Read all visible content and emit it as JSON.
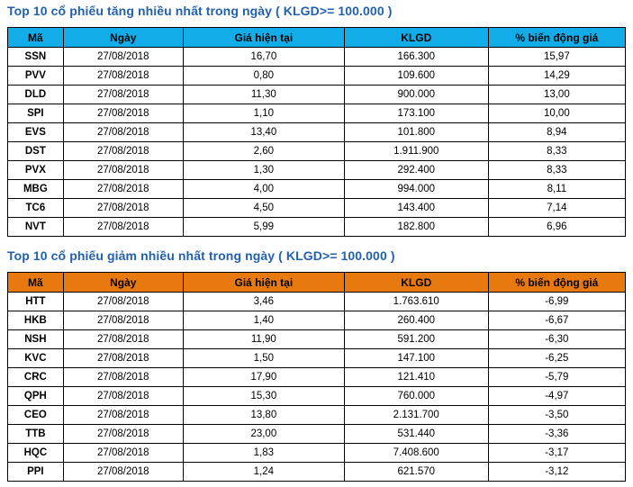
{
  "title_color": "#2161AE",
  "border_color": "#000000",
  "sections": [
    {
      "title": "Top 10 cổ phiếu tăng nhiều nhất trong ngày ( KLGD>= 100.000 )",
      "header_bg": "#12ACE8",
      "columns": [
        "Mã",
        "Ngày",
        "Giá hiện tại",
        "KLGD",
        "% biến động giá"
      ],
      "rows": [
        [
          "SSN",
          "27/08/2018",
          "16,70",
          "166.300",
          "15,97"
        ],
        [
          "PVV",
          "27/08/2018",
          "0,80",
          "109.600",
          "14,29"
        ],
        [
          "DLD",
          "27/08/2018",
          "11,30",
          "900.000",
          "13,00"
        ],
        [
          "SPI",
          "27/08/2018",
          "1,10",
          "173.100",
          "10,00"
        ],
        [
          "EVS",
          "27/08/2018",
          "13,40",
          "101.800",
          "8,94"
        ],
        [
          "DST",
          "27/08/2018",
          "2,60",
          "1.911.900",
          "8,33"
        ],
        [
          "PVX",
          "27/08/2018",
          "1,30",
          "292.400",
          "8,33"
        ],
        [
          "MBG",
          "27/08/2018",
          "4,00",
          "994.000",
          "8,11"
        ],
        [
          "TC6",
          "27/08/2018",
          "4,50",
          "143.400",
          "7,14"
        ],
        [
          "NVT",
          "27/08/2018",
          "5,99",
          "182.800",
          "6,96"
        ]
      ]
    },
    {
      "title": "Top 10 cổ phiếu giảm nhiều nhất trong ngày ( KLGD>= 100.000 )",
      "header_bg": "#E8790F",
      "columns": [
        "Mã",
        "Ngày",
        "Giá hiện tại",
        "KLGD",
        "% biến động giá"
      ],
      "rows": [
        [
          "HTT",
          "27/08/2018",
          "3,46",
          "1.763.610",
          "-6,99"
        ],
        [
          "HKB",
          "27/08/2018",
          "1,40",
          "260.400",
          "-6,67"
        ],
        [
          "NSH",
          "27/08/2018",
          "11,90",
          "591.200",
          "-6,30"
        ],
        [
          "KVC",
          "27/08/2018",
          "1,50",
          "147.100",
          "-6,25"
        ],
        [
          "CRC",
          "27/08/2018",
          "17,90",
          "121.410",
          "-5,79"
        ],
        [
          "QPH",
          "27/08/2018",
          "15,30",
          "760.000",
          "-4,97"
        ],
        [
          "CEO",
          "27/08/2018",
          "13,80",
          "2.131.700",
          "-3,50"
        ],
        [
          "TTB",
          "27/08/2018",
          "23,00",
          "531.440",
          "-3,36"
        ],
        [
          "HQC",
          "27/08/2018",
          "1,83",
          "7.408.600",
          "-3,17"
        ],
        [
          "PPI",
          "27/08/2018",
          "1,24",
          "621.570",
          "-3,12"
        ]
      ]
    }
  ]
}
